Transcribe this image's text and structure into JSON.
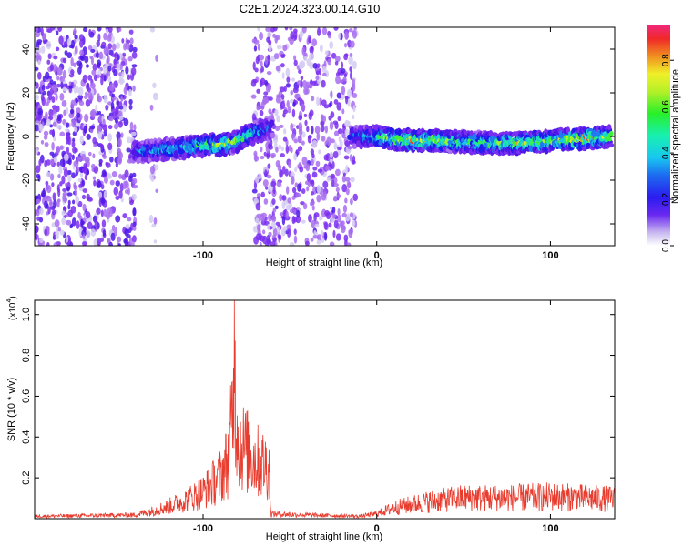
{
  "figure": {
    "title": "C2E1.2024.323.00.14.G10"
  },
  "colormap": [
    "#d5cbf2",
    "#a86ff0",
    "#7a2ff0",
    "#4f18e8",
    "#1c1cf0",
    "#1f7af0",
    "#19c8e6",
    "#1ee8a8",
    "#3cf03c",
    "#a8f028",
    "#f0e628",
    "#f0a020",
    "#f03c1e",
    "#f0287a"
  ],
  "colorbar": {
    "label": "Normalized spectral amplitude",
    "ticks": [
      {
        "value": 0.0,
        "label": "0.0"
      },
      {
        "value": 0.2,
        "label": "0.2"
      },
      {
        "value": 0.4,
        "label": "0.4"
      },
      {
        "value": 0.6,
        "label": "0.6"
      },
      {
        "value": 0.8,
        "label": "0.8"
      }
    ],
    "range": [
      0,
      0.95
    ]
  },
  "chart_data": [
    {
      "type": "heatmap",
      "xlabel": "Height of straight line (km)",
      "ylabel": "Frequency (Hz)",
      "xlim": [
        -197,
        137
      ],
      "ylim": [
        -50,
        50
      ],
      "xticks": [
        {
          "value": -100,
          "label": "-100"
        },
        {
          "value": 0,
          "label": "0"
        },
        {
          "value": 100,
          "label": "100"
        }
      ],
      "yticks": [
        {
          "value": -40,
          "label": "-40"
        },
        {
          "value": -20,
          "label": "-20"
        },
        {
          "value": 0,
          "label": "0"
        },
        {
          "value": 20,
          "label": "20"
        },
        {
          "value": 40,
          "label": "40"
        }
      ],
      "noise_regions": [
        {
          "x_range": [
            -197,
            -139
          ],
          "amplitude": 0.15
        },
        {
          "x_range": [
            -71,
            -12
          ],
          "amplitude": 0.12
        },
        {
          "x_range": [
            -130,
            -126
          ],
          "amplitude": 0.05
        }
      ],
      "signal_ridge": [
        {
          "x": -140,
          "freq": -7,
          "amplitude": 0.35
        },
        {
          "x": -120,
          "freq": -6,
          "amplitude": 0.45
        },
        {
          "x": -100,
          "freq": -4,
          "amplitude": 0.55
        },
        {
          "x": -90,
          "freq": -4,
          "amplitude": 0.7
        },
        {
          "x": -80,
          "freq": -2,
          "amplitude": 0.6
        },
        {
          "x": -70,
          "freq": 2,
          "amplitude": 0.5
        },
        {
          "x": -60,
          "freq": 4,
          "amplitude": 0.3
        },
        {
          "x": -15,
          "freq": 0,
          "amplitude": 0.3
        },
        {
          "x": 0,
          "freq": 0,
          "amplitude": 0.55
        },
        {
          "x": 20,
          "freq": -2,
          "amplitude": 0.75
        },
        {
          "x": 40,
          "freq": -2,
          "amplitude": 0.6
        },
        {
          "x": 60,
          "freq": -3,
          "amplitude": 0.55
        },
        {
          "x": 80,
          "freq": -3,
          "amplitude": 0.7
        },
        {
          "x": 100,
          "freq": -2,
          "amplitude": 0.6
        },
        {
          "x": 120,
          "freq": -1,
          "amplitude": 0.8
        },
        {
          "x": 135,
          "freq": 0,
          "amplitude": 0.6
        }
      ]
    },
    {
      "type": "line",
      "xlabel": "Height of straight line (km)",
      "ylabel": "SNR (10 * v/v)",
      "scale_label": "(x10",
      "scale_exp": "4",
      "scale_close": ")",
      "xlim": [
        -197,
        137
      ],
      "ylim": [
        0,
        1.07
      ],
      "xticks": [
        {
          "value": -100,
          "label": "-100"
        },
        {
          "value": 0,
          "label": "0"
        },
        {
          "value": 100,
          "label": "100"
        }
      ],
      "yticks": [
        {
          "value": 0.2,
          "label": "0.2"
        },
        {
          "value": 0.4,
          "label": "0.4"
        },
        {
          "value": 0.6,
          "label": "0.6"
        },
        {
          "value": 0.8,
          "label": "0.8"
        },
        {
          "value": 1.0,
          "label": "1.0"
        }
      ],
      "color": "#e83c2e",
      "envelope": [
        {
          "x": -197,
          "y": 0.02
        },
        {
          "x": -140,
          "y": 0.03
        },
        {
          "x": -130,
          "y": 0.06
        },
        {
          "x": -120,
          "y": 0.1
        },
        {
          "x": -110,
          "y": 0.15
        },
        {
          "x": -100,
          "y": 0.22
        },
        {
          "x": -95,
          "y": 0.28
        },
        {
          "x": -90,
          "y": 0.35
        },
        {
          "x": -85,
          "y": 0.5
        },
        {
          "x": -82,
          "y": 1.07
        },
        {
          "x": -79,
          "y": 0.62
        },
        {
          "x": -75,
          "y": 0.55
        },
        {
          "x": -70,
          "y": 0.48
        },
        {
          "x": -62,
          "y": 0.42
        },
        {
          "x": -61,
          "y": 0.04
        },
        {
          "x": -40,
          "y": 0.03
        },
        {
          "x": -10,
          "y": 0.02
        },
        {
          "x": 0,
          "y": 0.04
        },
        {
          "x": 10,
          "y": 0.09
        },
        {
          "x": 30,
          "y": 0.14
        },
        {
          "x": 50,
          "y": 0.17
        },
        {
          "x": 80,
          "y": 0.17
        },
        {
          "x": 100,
          "y": 0.18
        },
        {
          "x": 137,
          "y": 0.16
        }
      ]
    }
  ]
}
